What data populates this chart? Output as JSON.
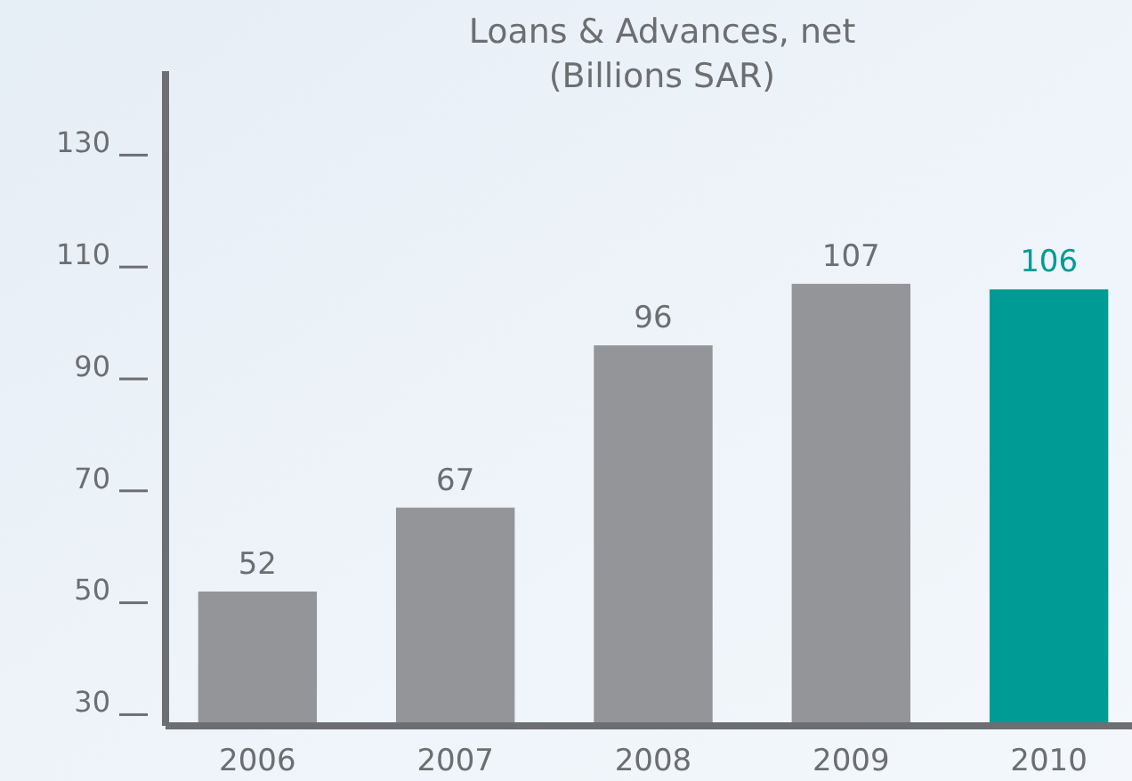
{
  "chart_data": {
    "type": "bar",
    "title": "Loans & Advances, net\n(Billions SAR)",
    "categories": [
      "2006",
      "2007",
      "2008",
      "2009",
      "2010"
    ],
    "values": [
      52,
      67,
      96,
      107,
      106
    ],
    "colors": [
      "#939598",
      "#939598",
      "#939598",
      "#939598",
      "#009b95"
    ],
    "ylim": [
      28,
      145
    ],
    "yticks": [
      30,
      50,
      70,
      90,
      110,
      130
    ],
    "data_labels": true,
    "grid": false
  }
}
